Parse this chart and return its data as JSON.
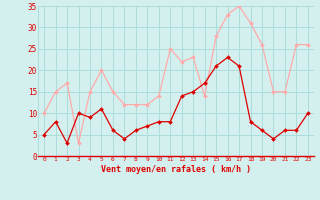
{
  "hours": [
    0,
    1,
    2,
    3,
    4,
    5,
    6,
    7,
    8,
    9,
    10,
    11,
    12,
    13,
    14,
    15,
    16,
    17,
    18,
    19,
    20,
    21,
    22,
    23
  ],
  "moyen": [
    5,
    8,
    3,
    10,
    9,
    11,
    6,
    4,
    6,
    7,
    8,
    8,
    14,
    15,
    17,
    21,
    23,
    21,
    8,
    6,
    4,
    6,
    6,
    10
  ],
  "rafales": [
    10,
    15,
    17,
    3,
    15,
    20,
    15,
    12,
    12,
    12,
    14,
    25,
    22,
    23,
    14,
    28,
    33,
    35,
    31,
    26,
    15,
    15,
    26,
    26
  ],
  "color_moyen": "#dd0000",
  "color_rafales": "#ffaaaa",
  "bg_color": "#d4f0ee",
  "grid_color": "#aadddd",
  "xlabel": "Vent moyen/en rafales ( km/h )",
  "ylim": [
    0,
    35
  ],
  "xlim": [
    -0.5,
    23.5
  ],
  "yticks": [
    0,
    5,
    10,
    15,
    20,
    25,
    30,
    35
  ],
  "ytick_labels": [
    "0",
    "5",
    "10",
    "15",
    "20",
    "25",
    "30",
    "35"
  ]
}
